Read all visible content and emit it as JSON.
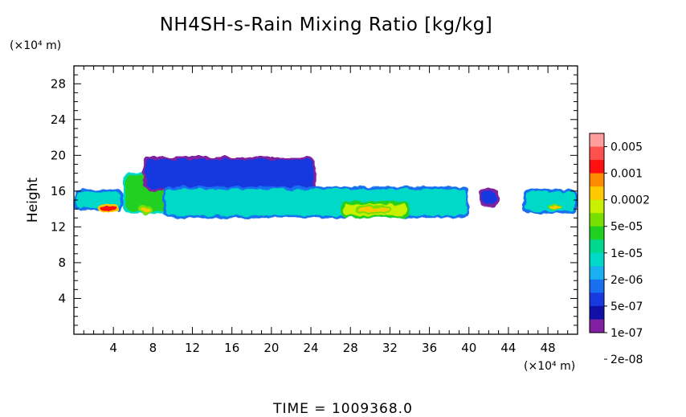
{
  "chart_data": {
    "type": "heatmap",
    "title": "NH4SH-s-Rain Mixing Ratio [kg/kg]",
    "ylabel": "Height",
    "x_unit": "(×10⁴ m)",
    "y_unit": "(×10⁴ m)",
    "xlim": [
      0,
      51
    ],
    "ylim": [
      0,
      30
    ],
    "x_ticks": [
      4,
      8,
      12,
      16,
      20,
      24,
      28,
      32,
      36,
      40,
      44,
      48
    ],
    "y_ticks": [
      4,
      8,
      12,
      16,
      20,
      24,
      28
    ],
    "colorbar": {
      "levels": [
        "0.005",
        "0.001",
        "0.0002",
        "5e-05",
        "1e-05",
        "2e-06",
        "5e-07",
        "1e-07",
        "2e-08"
      ],
      "colors": [
        "#ff9c9c",
        "#ff5050",
        "#ff1010",
        "#ff8c00",
        "#ffc800",
        "#c8f000",
        "#78e000",
        "#20d020",
        "#00d890",
        "#00d8c8",
        "#18b0f0",
        "#1870f0",
        "#1838e0",
        "#1010a8",
        "#8020a0"
      ]
    },
    "regions": [
      {
        "x": [
          0,
          5
        ],
        "y": [
          13.8,
          16.2
        ],
        "level": 2e-06
      },
      {
        "x": [
          2.5,
          4.5
        ],
        "y": [
          13.7,
          14.6
        ],
        "level": 0.001
      },
      {
        "x": [
          5,
          10
        ],
        "y": [
          13.5,
          18
        ],
        "level": 1e-05
      },
      {
        "x": [
          6.5,
          8
        ],
        "y": [
          13.5,
          14.5
        ],
        "level": 0.0002
      },
      {
        "x": [
          7,
          24.5
        ],
        "y": [
          16,
          19.8
        ],
        "level": 1e-07
      },
      {
        "x": [
          9,
          40
        ],
        "y": [
          13,
          16.5
        ],
        "level": 2e-06
      },
      {
        "x": [
          27,
          34
        ],
        "y": [
          13,
          14.8
        ],
        "level": 5e-05
      },
      {
        "x": [
          28.5,
          32
        ],
        "y": [
          13.5,
          14.4
        ],
        "level": 0.0002
      },
      {
        "x": [
          41,
          43
        ],
        "y": [
          14.3,
          16.3
        ],
        "level": 1e-07
      },
      {
        "x": [
          45.5,
          51
        ],
        "y": [
          13.5,
          16.2
        ],
        "level": 2e-06
      },
      {
        "x": [
          48,
          49.5
        ],
        "y": [
          14,
          14.5
        ],
        "level": 0.0002
      }
    ]
  },
  "footer": "TIME  =  1009368.0"
}
